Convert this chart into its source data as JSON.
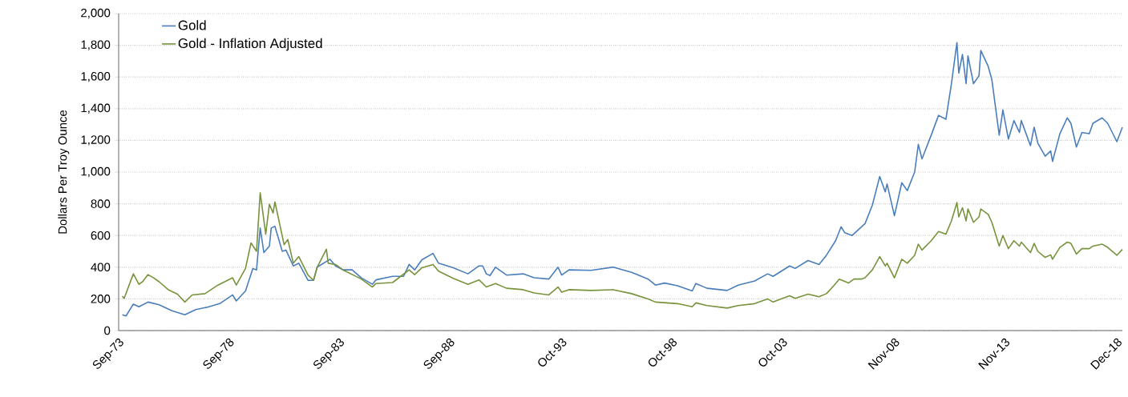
{
  "chart_data": {
    "type": "line",
    "ylabel": "Dollars Per Troy Ounce",
    "xlim": [
      "1973-09",
      "2019-03"
    ],
    "ylim": [
      0,
      2000
    ],
    "yticks": [
      0,
      200,
      400,
      600,
      800,
      {
        "value": 1000,
        "label": "1,000"
      },
      {
        "value": 1200,
        "label": "1,200"
      },
      {
        "value": 1400,
        "label": "1,400"
      },
      {
        "value": 1600,
        "label": "1,600"
      },
      {
        "value": 1800,
        "label": "1,800"
      },
      {
        "value": 2000,
        "label": "2,000"
      }
    ],
    "xticks": [
      {
        "value": "1973-09",
        "label": "Sep-73"
      },
      {
        "value": "1978-09",
        "label": "Sep-78"
      },
      {
        "value": "1983-09",
        "label": "Sep-83"
      },
      {
        "value": "1988-09",
        "label": "Sep-88"
      },
      {
        "value": "1993-10",
        "label": "Oct-93"
      },
      {
        "value": "1998-10",
        "label": "Oct-98"
      },
      {
        "value": "2003-10",
        "label": "Oct-03"
      },
      {
        "value": "2008-11",
        "label": "Nov-08"
      },
      {
        "value": "2013-11",
        "label": "Nov-13"
      },
      {
        "value": "2018-12",
        "label": "Dec-18"
      }
    ],
    "grid": "y",
    "legend": "top left",
    "line_style": "solid",
    "series": [
      {
        "name": "Gold",
        "color": "#4a7ebb",
        "x": [
          "1973-11",
          "1974-01",
          "1974-05",
          "1974-08",
          "1975-01",
          "1975-07",
          "1976-02",
          "1976-09",
          "1977-03",
          "1977-09",
          "1978-04",
          "1978-11",
          "1979-01",
          "1979-06",
          "1979-10",
          "1979-12",
          "1980-02",
          "1980-04",
          "1980-07",
          "1980-08",
          "1980-10",
          "1981-02",
          "1981-04",
          "1981-08",
          "1981-11",
          "1982-04",
          "1982-07",
          "1982-09",
          "1983-04",
          "1983-07",
          "1983-11",
          "1984-04",
          "1984-09",
          "1985-03",
          "1985-05",
          "1986-02",
          "1986-08",
          "1986-11",
          "1987-02",
          "1987-06",
          "1987-12",
          "1988-03",
          "1988-11",
          "1989-07",
          "1990-01",
          "1990-03",
          "1990-05",
          "1990-07",
          "1990-10",
          "1991-04",
          "1992-01",
          "1992-07",
          "1993-03",
          "1993-08",
          "1993-10",
          "1994-02",
          "1995-02",
          "1996-02",
          "1996-12",
          "1997-03",
          "1997-09",
          "1998-01",
          "1998-06",
          "1999-01",
          "1999-09",
          "1999-11",
          "2000-05",
          "2001-04",
          "2001-10",
          "2002-07",
          "2003-02",
          "2003-05",
          "2004-02",
          "2004-05",
          "2004-12",
          "2005-06",
          "2005-10",
          "2006-03",
          "2006-06",
          "2006-08",
          "2006-12",
          "2007-07",
          "2007-11",
          "2008-03",
          "2008-06",
          "2008-07",
          "2008-11",
          "2009-03",
          "2009-06",
          "2009-10",
          "2009-12",
          "2010-02",
          "2010-07",
          "2010-11",
          "2011-03",
          "2011-06",
          "2011-09",
          "2011-10",
          "2011-12",
          "2012-02",
          "2012-03",
          "2012-06",
          "2012-09",
          "2012-10",
          "2013-02",
          "2013-04",
          "2013-08",
          "2013-10",
          "2014-01",
          "2014-04",
          "2014-07",
          "2014-08",
          "2015-01",
          "2015-03",
          "2015-05",
          "2015-09",
          "2015-12",
          "2016-01",
          "2016-05",
          "2016-09",
          "2016-11",
          "2017-02",
          "2017-05",
          "2017-09",
          "2017-11",
          "2018-04",
          "2018-07",
          "2018-12",
          "2019-03"
        ],
        "values": [
          100,
          92,
          167,
          150,
          180,
          163,
          125,
          100,
          133,
          147,
          170,
          225,
          187,
          250,
          392,
          383,
          647,
          492,
          533,
          647,
          658,
          500,
          508,
          408,
          425,
          317,
          317,
          400,
          450,
          408,
          383,
          383,
          333,
          292,
          320,
          342,
          342,
          417,
          383,
          447,
          487,
          425,
          397,
          358,
          408,
          408,
          358,
          347,
          400,
          350,
          358,
          333,
          325,
          400,
          350,
          383,
          380,
          400,
          367,
          353,
          325,
          287,
          300,
          283,
          250,
          297,
          267,
          253,
          287,
          313,
          358,
          342,
          408,
          392,
          442,
          417,
          475,
          567,
          655,
          617,
          600,
          675,
          792,
          972,
          875,
          925,
          725,
          933,
          883,
          1000,
          1175,
          1083,
          1233,
          1358,
          1333,
          1558,
          1817,
          1625,
          1742,
          1558,
          1733,
          1558,
          1608,
          1767,
          1667,
          1583,
          1233,
          1392,
          1208,
          1325,
          1250,
          1325,
          1167,
          1283,
          1183,
          1100,
          1133,
          1067,
          1242,
          1342,
          1308,
          1158,
          1250,
          1242,
          1308,
          1342,
          1308,
          1192,
          1283
        ]
      },
      {
        "name": "Gold - Inflation Adjusted",
        "color": "#77933c",
        "x": [
          "1973-11",
          "1973-12",
          "1974-05",
          "1974-08",
          "1974-10",
          "1975-01",
          "1975-04",
          "1975-07",
          "1975-12",
          "1976-05",
          "1976-09",
          "1977-01",
          "1977-08",
          "1978-03",
          "1978-11",
          "1979-01",
          "1979-06",
          "1979-09",
          "1979-12",
          "1980-02",
          "1980-05",
          "1980-07",
          "1980-09",
          "1980-10",
          "1981-03",
          "1981-05",
          "1981-08",
          "1981-11",
          "1982-04",
          "1982-07",
          "1982-09",
          "1983-02",
          "1983-03",
          "1983-07",
          "1983-11",
          "1984-09",
          "1985-03",
          "1985-05",
          "1986-02",
          "1986-11",
          "1987-02",
          "1987-06",
          "1987-12",
          "1988-03",
          "1988-11",
          "1989-07",
          "1990-01",
          "1990-05",
          "1990-10",
          "1991-04",
          "1992-01",
          "1992-07",
          "1993-03",
          "1993-08",
          "1993-10",
          "1994-02",
          "1995-02",
          "1996-02",
          "1996-12",
          "1997-09",
          "1998-01",
          "1999-01",
          "1999-09",
          "1999-11",
          "2000-05",
          "2001-04",
          "2001-10",
          "2002-07",
          "2003-02",
          "2003-05",
          "2004-02",
          "2004-05",
          "2004-12",
          "2005-06",
          "2005-10",
          "2006-02",
          "2006-05",
          "2006-10",
          "2007-01",
          "2007-05",
          "2007-07",
          "2007-11",
          "2008-03",
          "2008-06",
          "2008-07",
          "2008-11",
          "2009-03",
          "2009-06",
          "2009-10",
          "2009-12",
          "2010-02",
          "2010-07",
          "2010-11",
          "2011-03",
          "2011-06",
          "2011-09",
          "2011-10",
          "2011-12",
          "2012-02",
          "2012-03",
          "2012-06",
          "2012-09",
          "2012-10",
          "2013-02",
          "2013-04",
          "2013-08",
          "2013-10",
          "2014-01",
          "2014-04",
          "2014-07",
          "2014-08",
          "2015-01",
          "2015-03",
          "2015-05",
          "2015-09",
          "2015-12",
          "2016-01",
          "2016-05",
          "2016-09",
          "2016-11",
          "2017-02",
          "2017-05",
          "2017-09",
          "2017-11",
          "2018-04",
          "2018-07",
          "2018-12",
          "2019-03"
        ],
        "values": [
          217,
          203,
          358,
          292,
          308,
          353,
          333,
          308,
          258,
          230,
          180,
          225,
          233,
          287,
          333,
          287,
          392,
          553,
          500,
          870,
          608,
          797,
          742,
          812,
          542,
          575,
          425,
          467,
          350,
          317,
          400,
          513,
          425,
          417,
          383,
          325,
          275,
          297,
          303,
          383,
          353,
          397,
          417,
          375,
          330,
          292,
          320,
          275,
          297,
          267,
          258,
          237,
          225,
          275,
          242,
          258,
          253,
          258,
          233,
          200,
          180,
          170,
          150,
          175,
          158,
          142,
          158,
          170,
          200,
          180,
          220,
          203,
          230,
          213,
          233,
          283,
          325,
          300,
          325,
          325,
          333,
          383,
          467,
          408,
          425,
          333,
          450,
          425,
          475,
          545,
          508,
          567,
          625,
          608,
          692,
          808,
          717,
          775,
          692,
          767,
          683,
          717,
          767,
          733,
          683,
          533,
          600,
          517,
          567,
          533,
          558,
          492,
          550,
          500,
          462,
          478,
          450,
          525,
          558,
          550,
          483,
          517,
          517,
          533,
          545,
          525,
          475,
          512
        ]
      }
    ]
  }
}
